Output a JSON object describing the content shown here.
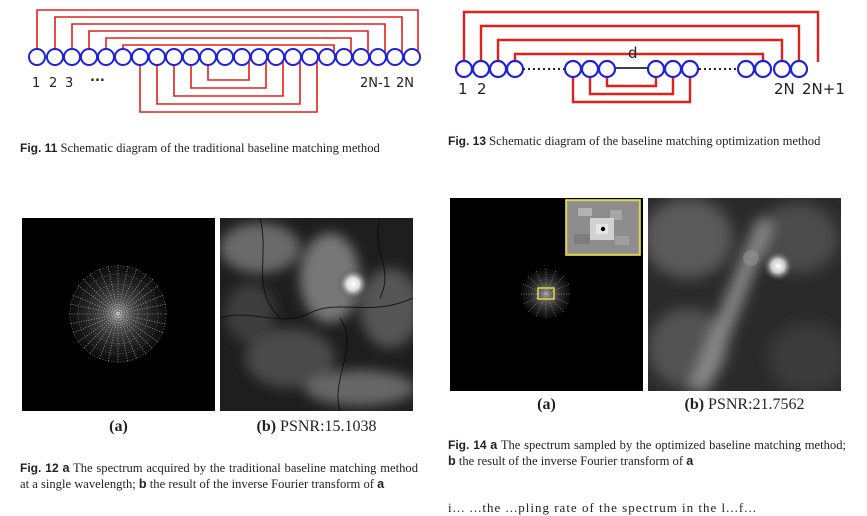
{
  "fig11": {
    "labels": [
      "1",
      "2",
      "3",
      "...",
      "2N-1",
      "2N"
    ],
    "caption_label": "Fig. 11",
    "caption_text": "Schematic diagram of the traditional baseline matching method"
  },
  "fig13": {
    "labels": [
      "1",
      "2",
      "d",
      "2N",
      "2N+1"
    ],
    "caption_label": "Fig. 13",
    "caption_text": "Schematic diagram of the baseline matching optimization method"
  },
  "fig12": {
    "sub_a": "(a)",
    "sub_b_label": "(b)",
    "sub_b_text": "PSNR:15.1038",
    "caption_label": "Fig. 12",
    "caption_a": "a",
    "caption_text_1": "The spectrum acquired by the traditional baseline matching method at a single wavelength;",
    "caption_b": "b",
    "caption_text_2": "the result of the inverse Fourier transform of",
    "caption_a2": "a"
  },
  "fig14": {
    "sub_a": "(a)",
    "sub_b_label": "(b)",
    "sub_b_text": "PSNR:21.7562",
    "caption_label": "Fig. 14",
    "caption_a": "a",
    "caption_text_1": "The spectrum sampled by the optimized baseline matching method;",
    "caption_b": "b",
    "caption_text_2": "the result of the inverse Fourier transform of",
    "caption_a2": "a"
  },
  "body_fragment": "i... ...the ...pling rate of the spectrum in the l...f..."
}
